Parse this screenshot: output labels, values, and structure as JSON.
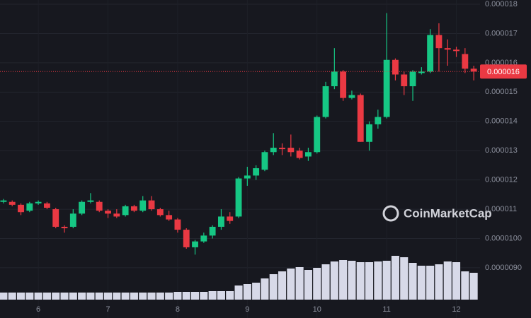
{
  "chart_data": {
    "type": "candlestick",
    "watermark": "CoinMarketCap",
    "x": [
      5.5,
      5.625,
      5.75,
      5.875,
      6,
      6.125,
      6.25,
      6.375,
      6.5,
      6.625,
      6.75,
      6.875,
      7,
      7.125,
      7.25,
      7.375,
      7.5,
      7.625,
      7.75,
      7.875,
      8,
      8.125,
      8.25,
      8.375,
      8.5,
      8.625,
      8.75,
      8.875,
      9,
      9.125,
      9.25,
      9.375,
      9.5,
      9.625,
      9.75,
      9.875,
      10,
      10.125,
      10.25,
      10.375,
      10.5,
      10.625,
      10.75,
      10.875,
      11,
      11.125,
      11.25,
      11.375,
      11.5,
      11.625,
      11.75,
      11.875,
      12,
      12.125,
      12.25
    ],
    "open": [
      1.125e-05,
      1.125e-05,
      1.115e-05,
      1.095e-05,
      1.12e-05,
      1.12e-05,
      1.1e-05,
      1.04e-05,
      1.04e-05,
      1.085e-05,
      1.125e-05,
      1.125e-05,
      1.095e-05,
      1.085e-05,
      1.08e-05,
      1.11e-05,
      1.095e-05,
      1.13e-05,
      1.1e-05,
      1.08e-05,
      1.065e-05,
      1.03e-05,
      9.7e-06,
      9.9e-06,
      1.01e-05,
      1.04e-05,
      1.075e-05,
      1.075e-05,
      1.205e-05,
      1.215e-05,
      1.235e-05,
      1.295e-05,
      1.31e-05,
      1.31e-05,
      1.3e-05,
      1.28e-05,
      1.295e-05,
      1.415e-05,
      1.52e-05,
      1.57e-05,
      1.48e-05,
      1.49e-05,
      1.33e-05,
      1.39e-05,
      1.415e-05,
      1.61e-05,
      1.56e-05,
      1.52e-05,
      1.565e-05,
      1.57e-05,
      1.695e-05,
      1.65e-05,
      1.645e-05,
      1.63e-05,
      1.58e-05
    ],
    "high": [
      1.135e-05,
      1.13e-05,
      1.12e-05,
      1.125e-05,
      1.13e-05,
      1.125e-05,
      1.105e-05,
      1.045e-05,
      1.1e-05,
      1.13e-05,
      1.155e-05,
      1.13e-05,
      1.1e-05,
      1.1e-05,
      1.115e-05,
      1.115e-05,
      1.145e-05,
      1.145e-05,
      1.105e-05,
      1.095e-05,
      1.07e-05,
      1.035e-05,
      9.95e-06,
      1.02e-05,
      1.045e-05,
      1.1e-05,
      1.09e-05,
      1.21e-05,
      1.245e-05,
      1.25e-05,
      1.3e-05,
      1.36e-05,
      1.325e-05,
      1.355e-05,
      1.31e-05,
      1.31e-05,
      1.42e-05,
      1.535e-05,
      1.65e-05,
      1.575e-05,
      1.505e-05,
      1.495e-05,
      1.4e-05,
      1.44e-05,
      1.77e-05,
      1.615e-05,
      1.57e-05,
      1.575e-05,
      1.585e-05,
      1.715e-05,
      1.735e-05,
      1.68e-05,
      1.655e-05,
      1.65e-05,
      1.59e-05
    ],
    "low": [
      1.12e-05,
      1.11e-05,
      1.08e-05,
      1.09e-05,
      1.115e-05,
      1.1e-05,
      1.035e-05,
      1.02e-05,
      1.035e-05,
      1.08e-05,
      1.12e-05,
      1.09e-05,
      1.07e-05,
      1.07e-05,
      1.075e-05,
      1.09e-05,
      1.09e-05,
      1.095e-05,
      1.075e-05,
      1.06e-05,
      1.02e-05,
      9.65e-06,
      9.45e-06,
      9.85e-06,
      1e-05,
      1.03e-05,
      1.05e-05,
      1.07e-05,
      1.18e-05,
      1.2e-05,
      1.23e-05,
      1.285e-05,
      1.285e-05,
      1.28e-05,
      1.27e-05,
      1.265e-05,
      1.29e-05,
      1.41e-05,
      1.51e-05,
      1.47e-05,
      1.475e-05,
      1.33e-05,
      1.3e-05,
      1.375e-05,
      1.41e-05,
      1.54e-05,
      1.49e-05,
      1.47e-05,
      1.56e-05,
      1.565e-05,
      1.57e-05,
      1.59e-05,
      1.62e-05,
      1.565e-05,
      1.54e-05
    ],
    "close": [
      1.13e-05,
      1.115e-05,
      1.09e-05,
      1.12e-05,
      1.125e-05,
      1.105e-05,
      1.04e-05,
      1.035e-05,
      1.085e-05,
      1.125e-05,
      1.13e-05,
      1.095e-05,
      1.085e-05,
      1.075e-05,
      1.11e-05,
      1.095e-05,
      1.13e-05,
      1.1e-05,
      1.08e-05,
      1.065e-05,
      1.03e-05,
      9.7e-06,
      9.9e-06,
      1.01e-05,
      1.04e-05,
      1.075e-05,
      1.06e-05,
      1.205e-05,
      1.215e-05,
      1.24e-05,
      1.295e-05,
      1.31e-05,
      1.305e-05,
      1.295e-05,
      1.275e-05,
      1.295e-05,
      1.415e-05,
      1.52e-05,
      1.57e-05,
      1.48e-05,
      1.49e-05,
      1.33e-05,
      1.39e-05,
      1.415e-05,
      1.61e-05,
      1.56e-05,
      1.52e-05,
      1.57e-05,
      1.57e-05,
      1.695e-05,
      1.65e-05,
      1.645e-05,
      1.64e-05,
      1.58e-05,
      1.57e-05
    ],
    "volume": [
      10,
      10,
      10,
      10,
      10,
      10,
      10,
      10,
      10,
      10,
      10,
      10,
      10,
      10,
      10,
      10,
      10,
      10,
      10,
      10,
      11,
      11,
      11,
      11,
      12,
      12,
      12,
      20,
      22,
      24,
      30,
      36,
      40,
      44,
      46,
      42,
      45,
      50,
      54,
      56,
      55,
      53,
      53,
      54,
      55,
      62,
      60,
      52,
      48,
      48,
      50,
      54,
      53,
      40,
      38
    ],
    "up_color": "#16c784",
    "down_color": "#ea3943",
    "volume_color": "#d7d9e8",
    "last_price": 1.57e-05,
    "last_price_label": "0.000016",
    "xlim": [
      5.45,
      12.34
    ],
    "xticks": [
      6,
      7,
      8,
      9,
      10,
      11,
      12
    ],
    "ylim": [
      7.285e-06,
      1.8145e-05
    ],
    "yticks": [
      {
        "value": 1.8e-05,
        "label": "0.000018"
      },
      {
        "value": 1.7e-05,
        "label": "0.000017"
      },
      {
        "value": 1.6e-05,
        "label": "0.000016"
      },
      {
        "value": 1.5e-05,
        "label": "0.000015"
      },
      {
        "value": 1.4e-05,
        "label": "0.000014"
      },
      {
        "value": 1.3e-05,
        "label": "0.000013"
      },
      {
        "value": 1.2e-05,
        "label": "0.000012"
      },
      {
        "value": 1.1e-05,
        "label": "0.000011"
      },
      {
        "value": 1e-05,
        "label": "0.0000100"
      },
      {
        "value": 9e-06,
        "label": "0.0000090"
      }
    ],
    "grid": true
  }
}
